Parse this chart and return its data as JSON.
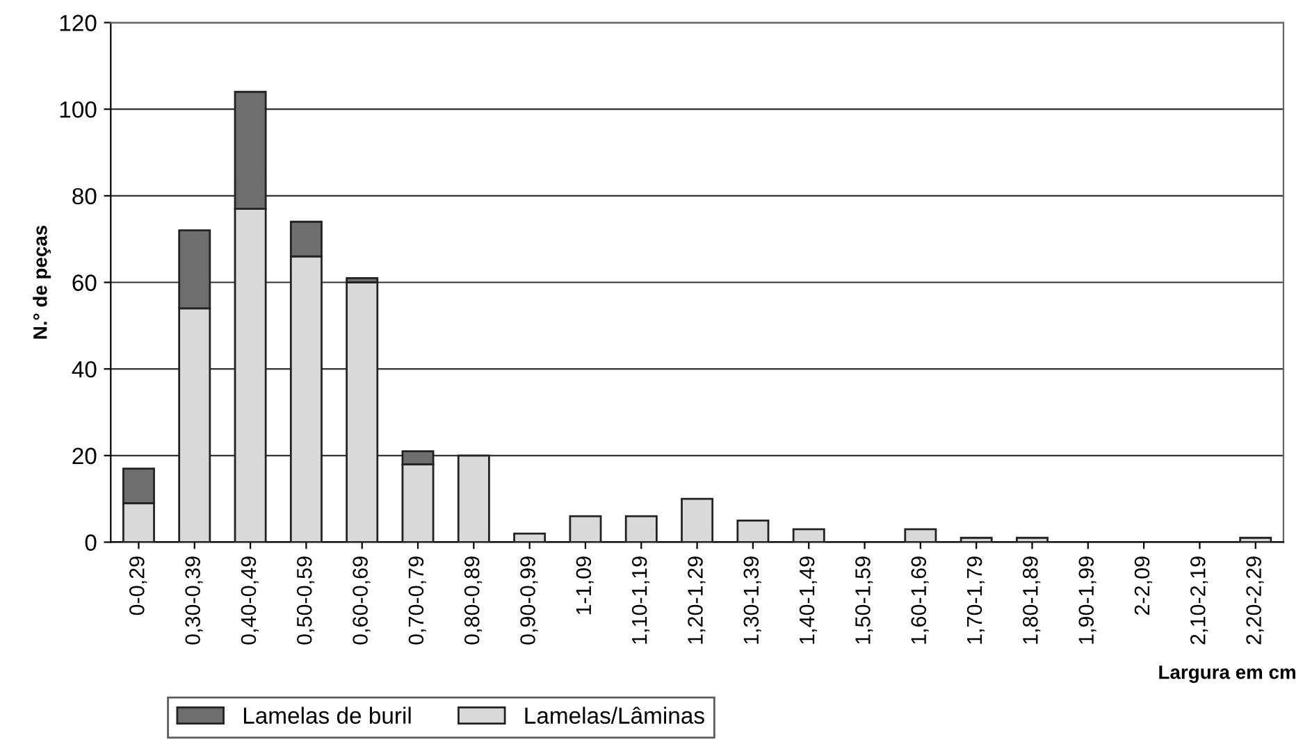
{
  "chart_data": {
    "type": "bar",
    "stacked": true,
    "xlabel": "Largura em cm",
    "ylabel": "N.° de peças",
    "categories": [
      "0-0,29",
      "0,30-0,39",
      "0,40-0,49",
      "0,50-0,59",
      "0,60-0,69",
      "0,70-0,79",
      "0,80-0,89",
      "0,90-0,99",
      "1-1,09",
      "1,10-1,19",
      "1,20-1,29",
      "1,30-1,39",
      "1,40-1,49",
      "1,50-1,59",
      "1,60-1,69",
      "1,70-1,79",
      "1,80-1,89",
      "1,90-1,99",
      "2-2,09",
      "2,10-2,19",
      "2,20-2,29"
    ],
    "series": [
      {
        "name": "Lamelas/Lâminas",
        "color": "#d9d9d9",
        "values": [
          9,
          54,
          77,
          66,
          60,
          18,
          20,
          2,
          6,
          6,
          10,
          5,
          3,
          0,
          3,
          1,
          1,
          0,
          0,
          0,
          1
        ]
      },
      {
        "name": "Lamelas de buril",
        "color": "#6e6e6e",
        "values": [
          8,
          18,
          27,
          8,
          1,
          3,
          0,
          0,
          0,
          0,
          0,
          0,
          0,
          0,
          0,
          0,
          0,
          0,
          0,
          0,
          0
        ]
      }
    ],
    "ylim": [
      0,
      120
    ],
    "yticks": [
      0,
      20,
      40,
      60,
      80,
      100,
      120
    ],
    "grid": "y",
    "legend": "bottom left"
  }
}
